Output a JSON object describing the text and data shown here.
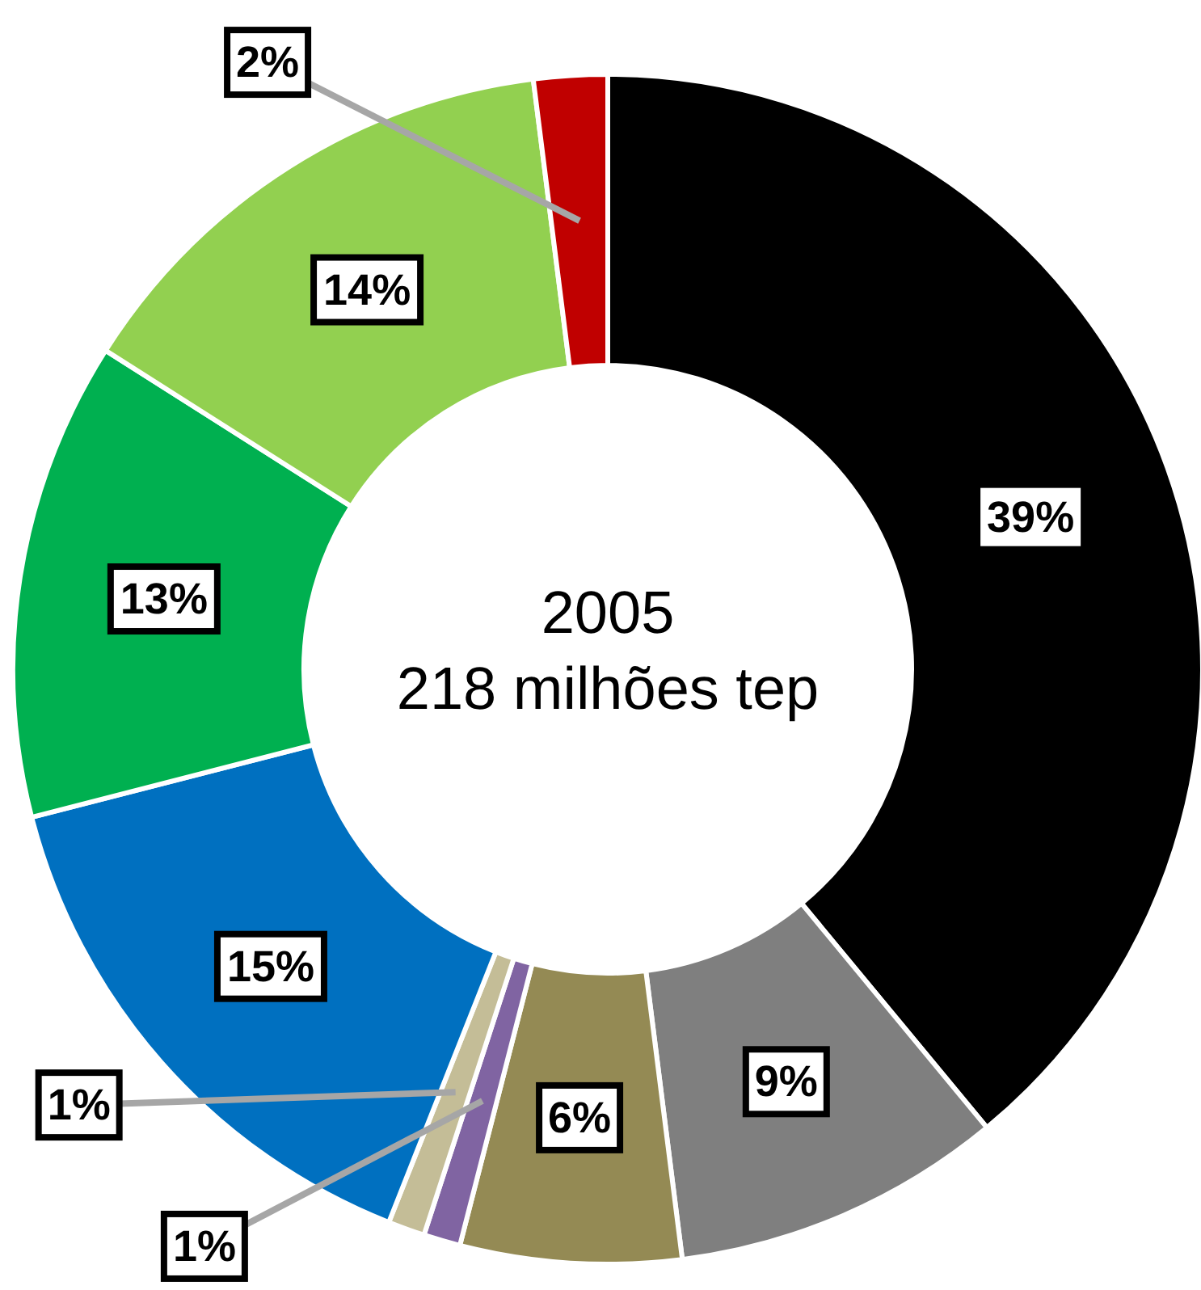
{
  "chart_data": {
    "type": "donut",
    "title": "2005",
    "subtitle": "218 milhões tep",
    "categories": [
      null,
      null,
      null,
      null,
      null,
      null,
      null,
      null,
      null
    ],
    "values": [
      39,
      9,
      6,
      1,
      1,
      15,
      13,
      14,
      2
    ],
    "value_labels": [
      "39%",
      "9%",
      "6%",
      "1%",
      "1%",
      "15%",
      "13%",
      "14%",
      "2%"
    ],
    "colors": [
      "#000000",
      "#7f7f7f",
      "#948a54",
      "#8064a2",
      "#c4bd97",
      "#0070c0",
      "#00b050",
      "#92d050",
      "#c00000"
    ]
  }
}
